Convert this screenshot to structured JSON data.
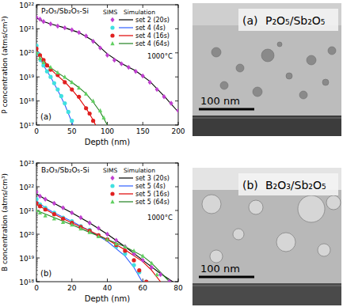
{
  "chart_data": [
    {
      "type": "scatter",
      "log": "y",
      "annotations": [
        "P₂O₅/Sb₂O₅-Si",
        "1000°C",
        "(a)"
      ],
      "x_label": "Depth (nm)",
      "y_label": "P concentration (atms/cm³)",
      "legend_headers": [
        "SIMS",
        "Simulation"
      ],
      "xlim": [
        0,
        200
      ],
      "xticks": [
        0,
        50,
        100,
        150,
        200
      ],
      "ylim": [
        1e+17,
        1e+22
      ],
      "yticks": [
        {
          "value": 1e+17,
          "label": "10¹⁷"
        },
        {
          "value": 1e+18,
          "label": "10¹⁸"
        },
        {
          "value": 1e+19,
          "label": "10¹⁹"
        },
        {
          "value": 1e+20,
          "label": "10²⁰"
        },
        {
          "value": 1e+21,
          "label": "10²¹"
        },
        {
          "value": 1e+22,
          "label": "10²²"
        }
      ],
      "series": [
        {
          "name": "set 2 (20s)",
          "marker": "diamond",
          "color": "#c040d0",
          "x": [
            0,
            5,
            10,
            20,
            30,
            40,
            50,
            60,
            70,
            80,
            90,
            100,
            110,
            120,
            130,
            140,
            150,
            160,
            170,
            180,
            190,
            200
          ],
          "values": [
            3e+21,
            2.5e+21,
            2e+21,
            1.6e+21,
            1.3e+21,
            1.1e+21,
            9e+20,
            7e+20,
            5e+20,
            3e+20,
            1.6e+20,
            8e+19,
            5e+19,
            3.5e+19,
            2.5e+19,
            1.7e+19,
            1.1e+19,
            6e+18,
            3e+18,
            1.5e+18,
            8e+17,
            4e+17
          ],
          "simulation": {
            "color": "#000000",
            "x": [
              0,
              10,
              20,
              40,
              60,
              80,
              90,
              100,
              120,
              140,
              160,
              180,
              200
            ],
            "values": [
              2.8e+21,
              2e+21,
              1.6e+21,
              1.1e+21,
              7e+20,
              3.2e+20,
              1.7e+20,
              9e+19,
              3.6e+19,
              1.8e+19,
              6.5e+18,
              1.6e+18,
              3.5e+17
            ]
          }
        },
        {
          "name": "set 4 (4s)",
          "marker": "circle",
          "color": "#40e0e0",
          "x": [
            0,
            3,
            6,
            10,
            15,
            20,
            25,
            30,
            35,
            40,
            45,
            50
          ],
          "values": [
            2e+20,
            9e+19,
            5e+19,
            3e+19,
            1.7e+19,
            1e+19,
            5.5e+18,
            3e+18,
            1.6e+18,
            8e+17,
            3.5e+17,
            1.5e+17
          ],
          "simulation": {
            "color": "#3060ff",
            "x": [
              0,
              5,
              10,
              20,
              30,
              40,
              50,
              55
            ],
            "values": [
              1.8e+20,
              6e+19,
              3e+19,
              1e+19,
              2.8e+18,
              7e+17,
              1.3e+17,
              6e+16
            ]
          }
        },
        {
          "name": "set 4 (16s)",
          "marker": "circle",
          "color": "#e02020",
          "x": [
            0,
            5,
            10,
            15,
            20,
            30,
            40,
            50,
            60,
            70,
            75,
            80
          ],
          "values": [
            1.5e+20,
            8e+19,
            5e+19,
            3e+19,
            2e+19,
            1.2e+19,
            6e+18,
            3e+18,
            1.5e+18,
            5e+17,
            3e+17,
            1.5e+17
          ],
          "simulation": {
            "color": "#e00000",
            "x": [
              0,
              10,
              20,
              30,
              40,
              50,
              60,
              70,
              80,
              85
            ],
            "values": [
              1.4e+20,
              5e+19,
              2.1e+19,
              1.1e+19,
              6.2e+18,
              3e+18,
              1.3e+18,
              5e+17,
              1.6e+17,
              8e+16
            ]
          }
        },
        {
          "name": "set 4 (64s)",
          "marker": "triangle",
          "color": "#60d060",
          "x": [
            0,
            5,
            10,
            20,
            30,
            40,
            50,
            60,
            70,
            80,
            90,
            95
          ],
          "values": [
            1e+20,
            6e+19,
            4e+19,
            2.5e+19,
            1.5e+19,
            1e+19,
            6e+18,
            3.5e+18,
            2e+18,
            1e+18,
            4e+17,
            2e+17
          ],
          "simulation": {
            "color": "#208020",
            "x": [
              0,
              10,
              20,
              30,
              40,
              50,
              60,
              70,
              80,
              90,
              100
            ],
            "values": [
              1e+20,
              4e+19,
              2.4e+19,
              1.5e+19,
              9.5e+18,
              6e+18,
              3.6e+18,
              2e+18,
              9e+17,
              3.5e+17,
              1e+17
            ]
          }
        }
      ]
    },
    {
      "type": "scatter",
      "log": "y",
      "annotations": [
        "B₂O₃/Sb₂O₅-Si",
        "1000°C",
        "(b)"
      ],
      "x_label": "Depth (nm)",
      "y_label": "B concentration (atms/cm³)",
      "legend_headers": [
        "SIMS",
        "Simulation"
      ],
      "xlim": [
        0,
        80
      ],
      "xticks": [
        0,
        20,
        40,
        60,
        80
      ],
      "ylim": [
        1e+18,
        1e+23
      ],
      "yticks": [
        {
          "value": 1e+18,
          "label": "10¹⁸"
        },
        {
          "value": 1e+19,
          "label": "10¹⁹"
        },
        {
          "value": 1e+20,
          "label": "10²⁰"
        },
        {
          "value": 1e+21,
          "label": "10²¹"
        },
        {
          "value": 1e+22,
          "label": "10²²"
        },
        {
          "value": 1e+23,
          "label": "10²³"
        }
      ],
      "series": [
        {
          "name": "set 3 (20s)",
          "marker": "diamond",
          "color": "#c040d0",
          "x": [
            0,
            2,
            5,
            10,
            15,
            20,
            25,
            30,
            35,
            40,
            45,
            50,
            55,
            60,
            65,
            70,
            75
          ],
          "values": [
            6e+21,
            4e+21,
            3e+21,
            2e+21,
            1.3e+21,
            8e+20,
            5e+20,
            3e+20,
            1.8e+20,
            1e+20,
            5.5e+19,
            3e+19,
            1.5e+19,
            8e+18,
            4e+18,
            2e+18,
            1e+18
          ],
          "simulation": {
            "color": "#000000",
            "x": [
              0,
              5,
              10,
              20,
              30,
              40,
              50,
              60,
              70,
              80
            ],
            "values": [
              5e+21,
              3e+21,
              2e+21,
              8e+20,
              3e+20,
              1e+20,
              3e+19,
              8e+18,
              2.2e+18,
              7e+17
            ]
          }
        },
        {
          "name": "set 5 (4s)",
          "marker": "circle",
          "color": "#40e0e0",
          "x": [
            0,
            2,
            5,
            10,
            15,
            20,
            25,
            30,
            35,
            40,
            45,
            50,
            55,
            58,
            62
          ],
          "values": [
            3e+21,
            1.8e+21,
            1.3e+21,
            8e+20,
            5e+20,
            3.5e+20,
            2.2e+20,
            1.5e+20,
            9e+19,
            6e+19,
            3e+19,
            1.5e+19,
            5e+18,
            2.5e+18,
            1e+18
          ],
          "simulation": {
            "color": "#3060ff",
            "x": [
              0,
              5,
              10,
              20,
              30,
              40,
              50,
              55,
              60
            ],
            "values": [
              2.5e+21,
              1.3e+21,
              8e+20,
              3.5e+20,
              1.4e+20,
              5e+19,
              1.2e+19,
              4e+18,
              9e+17
            ]
          }
        },
        {
          "name": "set 5 (16s)",
          "marker": "circle",
          "color": "#e02020",
          "x": [
            0,
            2,
            5,
            10,
            15,
            20,
            25,
            30,
            35,
            40,
            45,
            50,
            55,
            58,
            62
          ],
          "values": [
            2e+21,
            1.5e+21,
            1.1e+21,
            7e+20,
            4.5e+20,
            3e+20,
            2e+20,
            1.4e+20,
            9e+19,
            6e+19,
            3.5e+19,
            2e+19,
            8e+18,
            3e+18,
            1e+18
          ],
          "simulation": {
            "color": "#e00000",
            "x": [
              0,
              10,
              20,
              30,
              40,
              50,
              60,
              65,
              70
            ],
            "values": [
              1.8e+21,
              7e+20,
              3e+20,
              1.4e+20,
              6e+19,
              2.2e+19,
              7e+18,
              3e+18,
              1e+18
            ]
          }
        },
        {
          "name": "set 5 (64s)",
          "marker": "triangle",
          "color": "#60d060",
          "x": [
            0,
            2,
            5,
            10,
            15,
            20,
            25,
            30,
            35,
            40,
            45,
            50,
            55,
            60,
            65,
            68
          ],
          "values": [
            1e+21,
            8e+20,
            6e+20,
            4.5e+20,
            3.2e+20,
            2.5e+20,
            1.7e+20,
            1.2e+20,
            8e+19,
            6e+19,
            4e+19,
            3e+19,
            2e+19,
            1.2e+19,
            6e+18,
            2e+18
          ],
          "simulation": {
            "color": "#208020",
            "x": [
              0,
              10,
              20,
              30,
              40,
              50,
              60,
              65,
              70,
              75
            ],
            "values": [
              1e+21,
              5e+20,
              2.5e+20,
              1.2e+20,
              6e+19,
              3e+19,
              1.2e+19,
              6e+18,
              2.5e+18,
              1e+18
            ]
          }
        }
      ]
    }
  ],
  "images": [
    {
      "label": "(a)",
      "title": "P₂O₅/Sb₂O₅",
      "scale_bar": "100 nm"
    },
    {
      "label": "(b)",
      "title": "B₂O₃/Sb₂O₅",
      "scale_bar": "100 nm"
    }
  ]
}
